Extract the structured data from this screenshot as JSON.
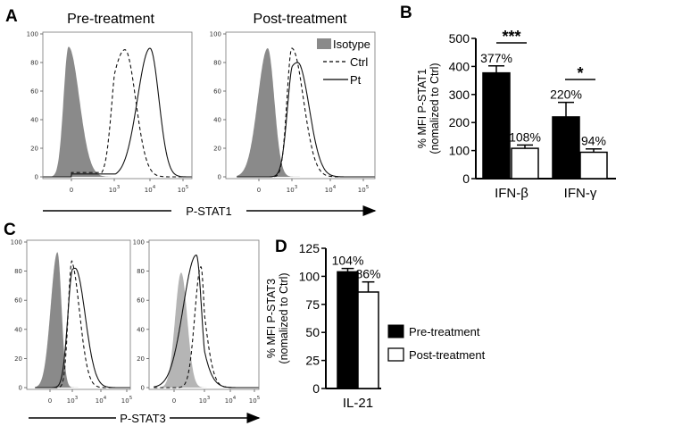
{
  "panels": {
    "a": "A",
    "b": "B",
    "c": "C",
    "d": "D"
  },
  "colors": {
    "isotype": "#8a8a8a",
    "isotype_light": "#b5b5b5",
    "pre": "#000000",
    "post": "#ffffff"
  },
  "chart_data": [
    {
      "id": "A-pre",
      "type": "area",
      "title": "Pre-treatment",
      "xlabel": "P-STAT1",
      "xticks": [
        "0",
        "10^3",
        "10^4",
        "10^5"
      ],
      "yticks": [
        "0",
        "20",
        "40",
        "60",
        "80",
        "100"
      ],
      "ylim": [
        0,
        100
      ],
      "series": [
        {
          "name": "Isotype",
          "style": "filled",
          "center_log": -0.2,
          "height": 91,
          "sd_left": 0.35,
          "sd_right": 0.75
        },
        {
          "name": "Ctrl",
          "style": "dashed",
          "center_log": 3.3,
          "height": 89,
          "sd_left": 0.45,
          "sd_right": 0.3,
          "baseline": 3
        },
        {
          "name": "Pt",
          "style": "solid",
          "center_log": 4.0,
          "height": 90,
          "sd_left": 0.35,
          "sd_right": 0.25,
          "baseline": 2
        }
      ]
    },
    {
      "id": "A-post",
      "type": "area",
      "title": "Post-treatment",
      "xlabel": "P-STAT1",
      "xticks": [
        "0",
        "10^3",
        "10^4",
        "10^5"
      ],
      "yticks": [
        "0",
        "20",
        "40",
        "60",
        "80",
        "100"
      ],
      "ylim": [
        0,
        100
      ],
      "legend": [
        "Isotype",
        "Ctrl",
        "Pt"
      ],
      "legend_position": "top-right",
      "series": [
        {
          "name": "Isotype",
          "style": "filled",
          "center_log": 0.8,
          "height": 90,
          "sd_left": 0.9,
          "sd_right": 0.6
        },
        {
          "name": "Ctrl",
          "style": "dashed",
          "center_log": 3.0,
          "height": 90,
          "sd_left": 0.45,
          "sd_right": 0.3
        },
        {
          "name": "Pt",
          "style": "solid",
          "center_log": 3.15,
          "height": 80,
          "sd_left": 0.55,
          "sd_right": 0.3
        }
      ]
    },
    {
      "id": "B",
      "type": "bar",
      "ylabel": "% MFI P-STAT1",
      "ylabel2": "(nomalized to Ctrl)",
      "ylim": [
        0,
        500
      ],
      "yticks": [
        "0",
        "100",
        "200",
        "300",
        "400",
        "500"
      ],
      "categories": [
        "IFN-β",
        "IFN-γ"
      ],
      "series": [
        {
          "name": "Pre-treatment",
          "values": [
            377,
            220
          ],
          "errors": [
            25,
            52
          ],
          "labels": [
            "377%",
            "220%"
          ]
        },
        {
          "name": "Post-treatment",
          "values": [
            108,
            94
          ],
          "errors": [
            12,
            12
          ],
          "labels": [
            "108%",
            "94%"
          ]
        }
      ],
      "significance": [
        "***",
        "*"
      ]
    },
    {
      "id": "C-pre",
      "type": "area",
      "xlabel": "P-STAT3",
      "xticks": [
        "0",
        "10^3",
        "10^4",
        "10^5"
      ],
      "yticks": [
        "0",
        "20",
        "40",
        "60",
        "80",
        "100"
      ],
      "ylim": [
        0,
        100
      ],
      "series": [
        {
          "name": "Isotype",
          "style": "filled",
          "center_log": 1.0,
          "height": 93,
          "sd_left": 0.9,
          "sd_right": 0.55
        },
        {
          "name": "Ctrl",
          "style": "dashed",
          "center_log": 2.95,
          "height": 87,
          "sd_left": 0.5,
          "sd_right": 0.3
        },
        {
          "name": "Pt",
          "style": "solid",
          "center_log": 3.1,
          "height": 82,
          "sd_left": 0.7,
          "sd_right": 0.35
        }
      ]
    },
    {
      "id": "C-post",
      "type": "area",
      "xlabel": "P-STAT3",
      "xticks": [
        "0",
        "10^3",
        "10^4",
        "10^5"
      ],
      "yticks": [
        "0",
        "20",
        "40",
        "60",
        "80",
        "100"
      ],
      "ylim": [
        0,
        100
      ],
      "series": [
        {
          "name": "Isotype",
          "style": "filled-light",
          "center_log": 0.7,
          "height": 79,
          "sd_left": 0.6,
          "sd_right": 0.6
        },
        {
          "name": "Pt",
          "style": "solid",
          "center_log": 2.2,
          "height": 91,
          "sd_left": 1.3,
          "sd_right": 0.5
        },
        {
          "name": "Ctrl",
          "style": "dashed",
          "center_log": 2.65,
          "height": 83,
          "sd_left": 0.6,
          "sd_right": 0.35
        }
      ]
    },
    {
      "id": "D",
      "type": "bar",
      "ylabel": "% MFI P-STAT3",
      "ylabel2": "(nomalized to Ctrl)",
      "ylim": [
        0,
        125
      ],
      "yticks": [
        "0",
        "25",
        "50",
        "75",
        "100",
        "125"
      ],
      "categories": [
        "IL-21"
      ],
      "series": [
        {
          "name": "Pre-treatment",
          "values": [
            104
          ],
          "errors": [
            3
          ],
          "labels": [
            "104%"
          ]
        },
        {
          "name": "Post-treatment",
          "values": [
            86
          ],
          "errors": [
            9
          ],
          "labels": [
            "86%"
          ]
        }
      ],
      "legend": [
        "Pre-treatment",
        "Post-treatment"
      ],
      "legend_position": "right"
    }
  ]
}
